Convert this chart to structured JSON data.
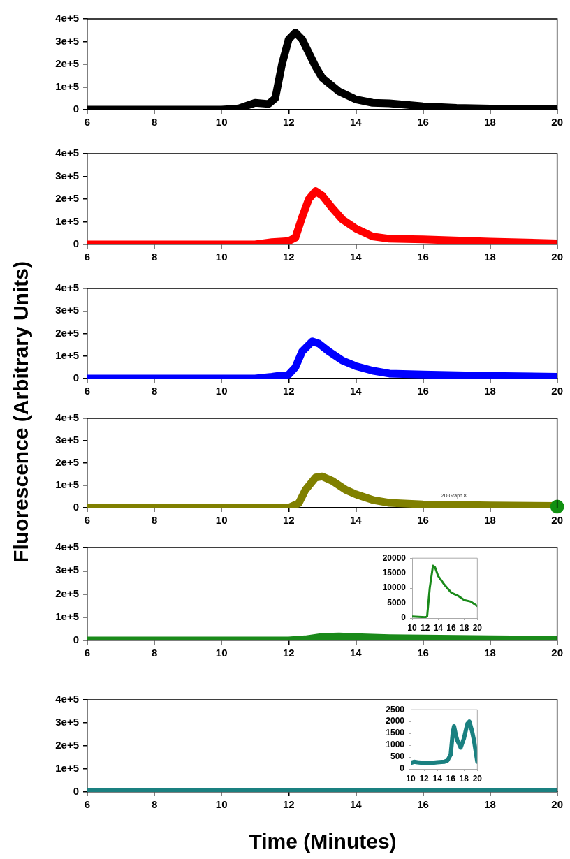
{
  "chart_data": [
    {
      "type": "line",
      "xlim": [
        6,
        20
      ],
      "xticks": [
        6,
        8,
        10,
        12,
        14,
        16,
        18,
        20
      ],
      "ylim": [
        0,
        400000
      ],
      "yticks": [
        0,
        {
          "value": 100000,
          "label": "1e+5"
        },
        {
          "value": 200000,
          "label": "2e+5"
        },
        {
          "value": 300000,
          "label": "3e+5"
        },
        {
          "value": 400000,
          "label": "4e+5"
        }
      ],
      "legend": false,
      "series": [
        {
          "color": "#000000",
          "x": [
            6,
            10,
            10.5,
            11,
            11.4,
            11.6,
            11.8,
            12,
            12.2,
            12.4,
            12.6,
            12.8,
            13,
            13.5,
            14,
            14.5,
            15,
            16,
            17,
            18,
            20
          ],
          "values": [
            0,
            0,
            5000,
            30000,
            25000,
            50000,
            200000,
            310000,
            340000,
            310000,
            250000,
            190000,
            140000,
            80000,
            45000,
            30000,
            28000,
            15000,
            8000,
            5000,
            2000
          ]
        }
      ]
    },
    {
      "type": "line",
      "xlim": [
        6,
        20
      ],
      "xticks": [
        6,
        8,
        10,
        12,
        14,
        16,
        18,
        20
      ],
      "ylim": [
        0,
        400000
      ],
      "yticks": [
        0,
        {
          "value": 100000,
          "label": "1e+5"
        },
        {
          "value": 200000,
          "label": "2e+5"
        },
        {
          "value": 300000,
          "label": "3e+5"
        },
        {
          "value": 400000,
          "label": "4e+5"
        }
      ],
      "legend": false,
      "series": [
        {
          "color": "#ff0000",
          "x": [
            6,
            11,
            11.5,
            12,
            12.2,
            12.4,
            12.6,
            12.8,
            13,
            13.3,
            13.6,
            14,
            14.5,
            15,
            16,
            18,
            20
          ],
          "values": [
            0,
            0,
            10000,
            15000,
            30000,
            120000,
            200000,
            235000,
            215000,
            160000,
            110000,
            70000,
            35000,
            25000,
            22000,
            12000,
            5000
          ]
        }
      ]
    },
    {
      "type": "line",
      "xlim": [
        6,
        20
      ],
      "xticks": [
        6,
        8,
        10,
        12,
        14,
        16,
        18,
        20
      ],
      "ylim": [
        0,
        400000
      ],
      "yticks": [
        0,
        {
          "value": 100000,
          "label": "1e+5"
        },
        {
          "value": 200000,
          "label": "2e+5"
        },
        {
          "value": 300000,
          "label": "3e+5"
        },
        {
          "value": 400000,
          "label": "4e+5"
        }
      ],
      "legend": false,
      "series": [
        {
          "color": "#0000ff",
          "x": [
            6,
            11,
            11.5,
            12,
            12.2,
            12.4,
            12.7,
            12.9,
            13.2,
            13.6,
            14,
            14.5,
            15,
            16,
            18,
            20
          ],
          "values": [
            0,
            0,
            8000,
            18000,
            50000,
            120000,
            165000,
            155000,
            120000,
            80000,
            55000,
            35000,
            22000,
            18000,
            12000,
            8000
          ]
        }
      ]
    },
    {
      "type": "line",
      "xlim": [
        6,
        20
      ],
      "xticks": [
        6,
        8,
        10,
        12,
        14,
        16,
        18,
        20
      ],
      "ylim": [
        0,
        400000
      ],
      "yticks": [
        0,
        {
          "value": 100000,
          "label": "1e+5"
        },
        {
          "value": 200000,
          "label": "2e+5"
        },
        {
          "value": 300000,
          "label": "3e+5"
        },
        {
          "value": 400000,
          "label": "4e+5"
        }
      ],
      "legend": false,
      "annotations": [
        "2D Graph 8"
      ],
      "ylabel": "Fluorescence (Arbitrary Units)",
      "series": [
        {
          "color": "#808000",
          "x": [
            6,
            12,
            12.3,
            12.5,
            12.8,
            13,
            13.3,
            13.7,
            14,
            14.5,
            15,
            16,
            18,
            20
          ],
          "values": [
            0,
            0,
            20000,
            80000,
            135000,
            140000,
            120000,
            80000,
            60000,
            35000,
            22000,
            15000,
            10000,
            8000
          ]
        },
        {
          "type": "scatter",
          "color": "#119011",
          "x": [
            20
          ],
          "values": [
            5000
          ]
        }
      ]
    },
    {
      "type": "line",
      "xlim": [
        6,
        20
      ],
      "xticks": [
        6,
        8,
        10,
        12,
        14,
        16,
        18,
        20
      ],
      "ylim": [
        0,
        400000
      ],
      "yticks": [
        0,
        {
          "value": 100000,
          "label": "1e+5"
        },
        {
          "value": 200000,
          "label": "2e+5"
        },
        {
          "value": 300000,
          "label": "3e+5"
        },
        {
          "value": 400000,
          "label": "4e+5"
        }
      ],
      "legend": false,
      "series": [
        {
          "color": "#1a8a1a",
          "x": [
            6,
            12,
            12.5,
            13,
            13.5,
            14,
            15,
            16,
            18,
            20
          ],
          "values": [
            0,
            0,
            5000,
            15000,
            17000,
            14000,
            10000,
            8000,
            5000,
            3000
          ]
        }
      ]
    },
    {
      "type": "line",
      "xlabel": "Time (Minutes)",
      "xlim": [
        6,
        20
      ],
      "xticks": [
        6,
        8,
        10,
        12,
        14,
        16,
        18,
        20
      ],
      "ylim": [
        0,
        400000
      ],
      "yticks": [
        0,
        {
          "value": 100000,
          "label": "1e+5"
        },
        {
          "value": 200000,
          "label": "2e+5"
        },
        {
          "value": 300000,
          "label": "3e+5"
        },
        {
          "value": 400000,
          "label": "4e+5"
        }
      ],
      "legend": false,
      "series": [
        {
          "color": "#1a8080",
          "x": [
            6,
            20
          ],
          "values": [
            0,
            0
          ]
        }
      ]
    },
    {
      "type": "line",
      "xlim": [
        10,
        20
      ],
      "xticks": [
        10,
        12,
        14,
        16,
        18,
        20
      ],
      "ylim": [
        0,
        20000
      ],
      "yticks": [
        0,
        5000,
        10000,
        15000,
        20000
      ],
      "legend": false,
      "series": [
        {
          "color": "#1a8a1a",
          "x": [
            10,
            12,
            12.3,
            12.7,
            13.2,
            13.5,
            14,
            15,
            16,
            17,
            18,
            19,
            20
          ],
          "values": [
            500,
            300,
            500,
            10000,
            17500,
            17000,
            14000,
            11000,
            8500,
            7500,
            6000,
            5500,
            4000
          ]
        }
      ]
    },
    {
      "type": "line",
      "xlim": [
        10,
        20
      ],
      "xticks": [
        10,
        12,
        14,
        16,
        18,
        20
      ],
      "ylim": [
        0,
        2500
      ],
      "yticks": [
        0,
        500,
        1000,
        1500,
        2000,
        2500
      ],
      "legend": false,
      "series": [
        {
          "color": "#1a8080",
          "x": [
            10,
            10.5,
            11,
            12,
            13,
            14,
            15,
            15.5,
            16,
            16.3,
            16.5,
            16.8,
            17,
            17.5,
            18,
            18.5,
            18.8,
            19.2,
            19.5,
            20
          ],
          "values": [
            250,
            300,
            280,
            250,
            250,
            280,
            300,
            350,
            600,
            1500,
            1800,
            1400,
            1200,
            900,
            1300,
            1900,
            2000,
            1600,
            1200,
            300
          ]
        }
      ]
    }
  ]
}
